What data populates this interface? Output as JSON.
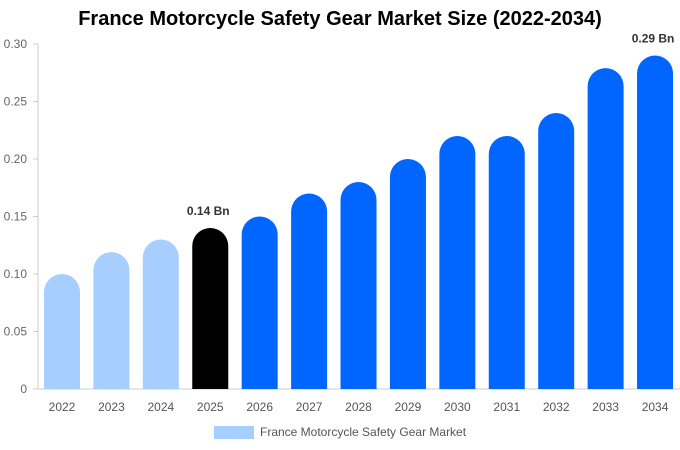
{
  "chart_data": {
    "type": "bar",
    "title": "France Motorcycle Safety Gear Market Size (2022-2034)",
    "xlabel": "",
    "ylabel": "",
    "categories": [
      "2022",
      "2023",
      "2024",
      "2025",
      "2026",
      "2027",
      "2028",
      "2029",
      "2030",
      "2031",
      "2032",
      "2033",
      "2034"
    ],
    "series": [
      {
        "name": "France Motorcycle Safety Gear Market",
        "values": [
          0.1,
          0.119,
          0.13,
          0.14,
          0.15,
          0.17,
          0.18,
          0.2,
          0.22,
          0.22,
          0.24,
          0.279,
          0.29
        ]
      }
    ],
    "ylim": [
      0,
      0.3
    ],
    "yticks": [
      "0",
      "0.05",
      "0.10",
      "0.15",
      "0.20",
      "0.25",
      "0.30"
    ],
    "data_labels": [
      {
        "category": "2025",
        "text": "0.14 Bn"
      },
      {
        "category": "2034",
        "text": "0.29 Bn"
      }
    ],
    "colors": {
      "historical": "#a6cfff",
      "current": "#000000",
      "forecast": "#0066ff"
    },
    "highlight_category": "2025",
    "grid": false,
    "legend_position": "bottom-center"
  }
}
